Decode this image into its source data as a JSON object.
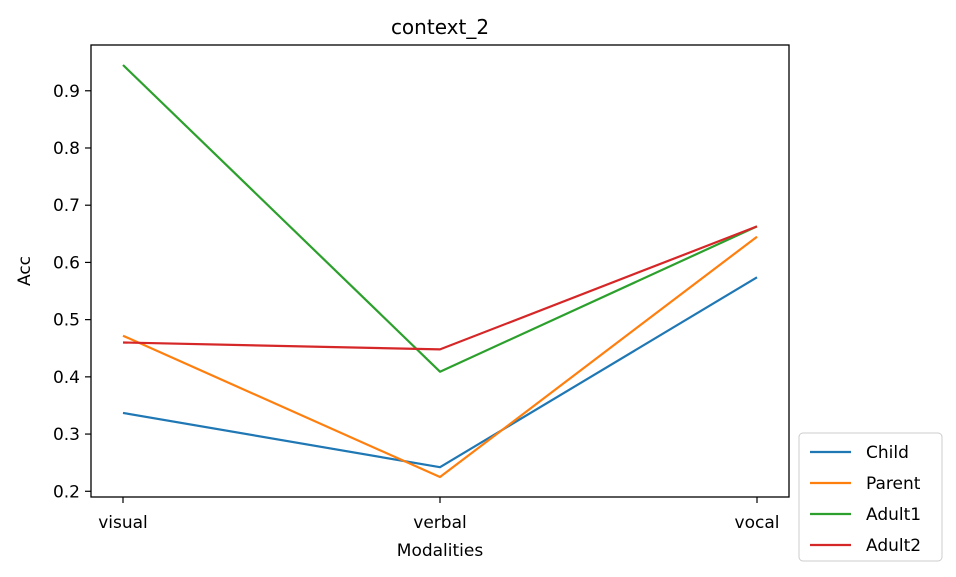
{
  "chart_data": {
    "type": "line",
    "title": "context_2",
    "xlabel": "Modalities",
    "ylabel": "Acc",
    "categories": [
      "visual",
      "verbal",
      "vocal"
    ],
    "ylim": [
      0.19,
      0.98
    ],
    "yticks": [
      "0.2",
      "0.3",
      "0.4",
      "0.5",
      "0.6",
      "0.7",
      "0.8",
      "0.9"
    ],
    "grid": false,
    "legend_position": "outside-bottom-right",
    "series": [
      {
        "name": "Child",
        "color": "#1f77b4",
        "values": [
          0.337,
          0.242,
          0.574
        ]
      },
      {
        "name": "Parent",
        "color": "#ff7f0e",
        "values": [
          0.472,
          0.225,
          0.645
        ]
      },
      {
        "name": "Adult1",
        "color": "#2ca02c",
        "values": [
          0.945,
          0.409,
          0.663
        ]
      },
      {
        "name": "Adult2",
        "color": "#d62728",
        "values": [
          0.46,
          0.448,
          0.663
        ]
      }
    ]
  }
}
